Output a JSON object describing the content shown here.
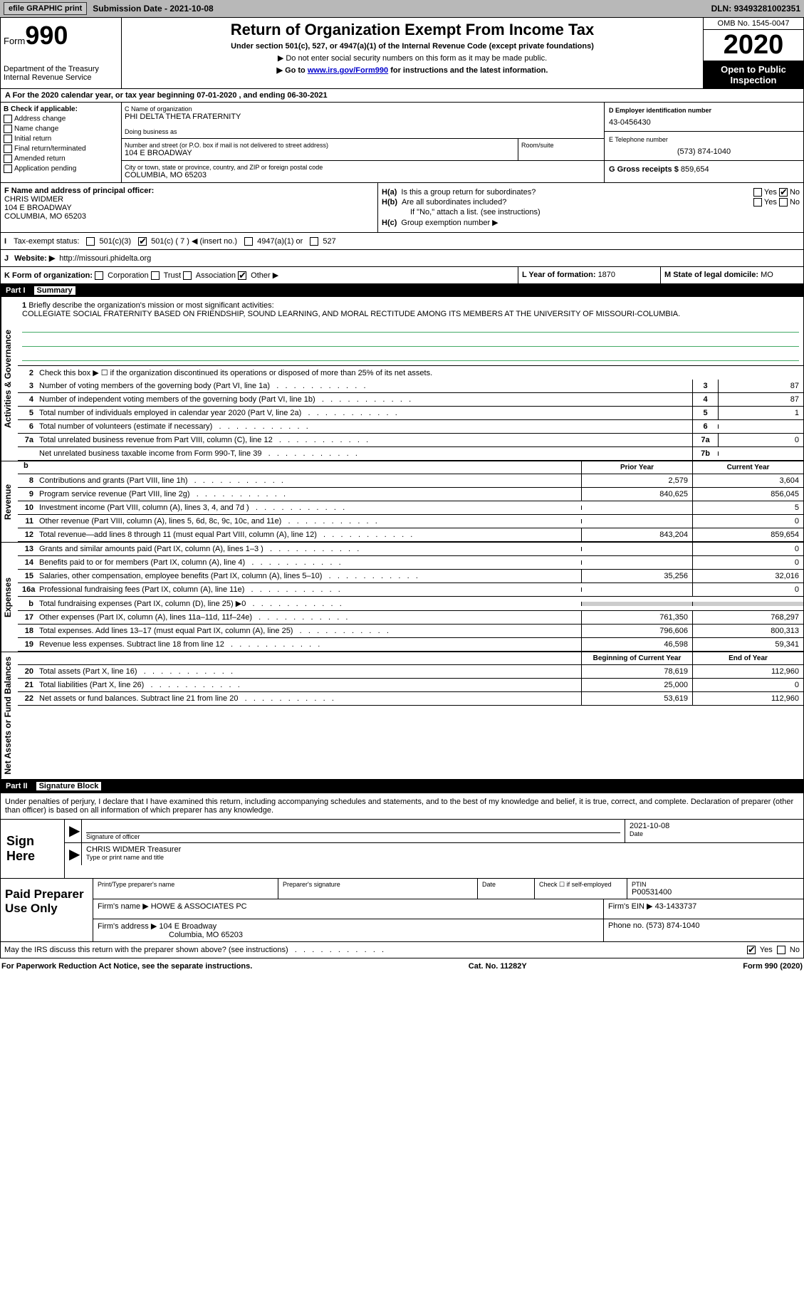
{
  "toolbar": {
    "efile_btn": "efile GRAPHIC print",
    "sub_date_label": "Submission Date - ",
    "sub_date": "2021-10-08",
    "dln_label": "DLN: ",
    "dln": "93493281002351"
  },
  "header": {
    "form_word": "Form",
    "form_num": "990",
    "dept": "Department of the Treasury\nInternal Revenue Service",
    "title": "Return of Organization Exempt From Income Tax",
    "subtitle": "Under section 501(c), 527, or 4947(a)(1) of the Internal Revenue Code (except private foundations)",
    "sub2": "▶ Do not enter social security numbers on this form as it may be made public.",
    "sub3_pre": "▶ Go to ",
    "sub3_link": "www.irs.gov/Form990",
    "sub3_post": " for instructions and the latest information.",
    "omb": "OMB No. 1545-0047",
    "year": "2020",
    "open": "Open to Public Inspection"
  },
  "line_a": "A For the 2020 calendar year, or tax year beginning 07-01-2020   , and ending 06-30-2021",
  "b": {
    "label": "B Check if applicable:",
    "items": [
      "Address change",
      "Name change",
      "Initial return",
      "Final return/terminated",
      "Amended return",
      "Application pending"
    ]
  },
  "c": {
    "name_label": "C Name of organization",
    "name": "PHI DELTA THETA FRATERNITY",
    "dba_label": "Doing business as",
    "street_label": "Number and street (or P.O. box if mail is not delivered to street address)",
    "street": "104 E BROADWAY",
    "room_label": "Room/suite",
    "city_label": "City or town, state or province, country, and ZIP or foreign postal code",
    "city": "COLUMBIA, MO  65203"
  },
  "d": {
    "label": "D Employer identification number",
    "value": "43-0456430"
  },
  "e": {
    "label": "E Telephone number",
    "value": "(573) 874-1040"
  },
  "g": {
    "label": "G Gross receipts $ ",
    "value": "859,654"
  },
  "f": {
    "label": "F Name and address of principal officer:",
    "name": "CHRIS WIDMER",
    "street": "104 E BROADWAY",
    "city": "COLUMBIA, MO  65203"
  },
  "h": {
    "a_label": "Is this a group return for subordinates?",
    "b_label": "Are all subordinates included?",
    "note": "If \"No,\" attach a list. (see instructions)",
    "c_label": "Group exemption number ▶"
  },
  "i": {
    "label": "Tax-exempt status:",
    "o1": "501(c)(3)",
    "o2": "501(c) ( 7 ) ◀ (insert no.)",
    "o3": "4947(a)(1) or",
    "o4": "527"
  },
  "j": {
    "label": "Website: ▶",
    "value": "http://missouri.phidelta.org"
  },
  "k": {
    "label": "K Form of organization:",
    "opts": [
      "Corporation",
      "Trust",
      "Association",
      "Other ▶"
    ]
  },
  "l": {
    "label": "L Year of formation: ",
    "value": "1870"
  },
  "m": {
    "label": "M State of legal domicile:",
    "value": "MO"
  },
  "part1": {
    "header": "Part I",
    "title": "Summary",
    "mission_label": "Briefly describe the organization's mission or most significant activities:",
    "mission": "COLLEGIATE SOCIAL FRATERNITY BASED ON FRIENDSHIP, SOUND LEARNING, AND MORAL RECTITUDE AMONG ITS MEMBERS AT THE UNIVERSITY OF MISSOURI-COLUMBIA.",
    "line2": "Check this box ▶ ☐  if the organization discontinued its operations or disposed of more than 25% of its net assets.",
    "vtabs": [
      "Activities & Governance",
      "Revenue",
      "Expenses",
      "Net Assets or Fund Balances"
    ],
    "rows_gov": [
      {
        "n": "3",
        "lbl": "Number of voting members of the governing body (Part VI, line 1a)",
        "box": "3",
        "val": "87"
      },
      {
        "n": "4",
        "lbl": "Number of independent voting members of the governing body (Part VI, line 1b)",
        "box": "4",
        "val": "87"
      },
      {
        "n": "5",
        "lbl": "Total number of individuals employed in calendar year 2020 (Part V, line 2a)",
        "box": "5",
        "val": "1"
      },
      {
        "n": "6",
        "lbl": "Total number of volunteers (estimate if necessary)",
        "box": "6",
        "val": ""
      },
      {
        "n": "7a",
        "lbl": "Total unrelated business revenue from Part VIII, column (C), line 12",
        "box": "7a",
        "val": "0"
      },
      {
        "n": "",
        "lbl": "Net unrelated business taxable income from Form 990-T, line 39",
        "box": "7b",
        "val": ""
      }
    ],
    "col_prior": "Prior Year",
    "col_current": "Current Year",
    "rows_rev": [
      {
        "n": "8",
        "lbl": "Contributions and grants (Part VIII, line 1h)",
        "p": "2,579",
        "c": "3,604"
      },
      {
        "n": "9",
        "lbl": "Program service revenue (Part VIII, line 2g)",
        "p": "840,625",
        "c": "856,045"
      },
      {
        "n": "10",
        "lbl": "Investment income (Part VIII, column (A), lines 3, 4, and 7d )",
        "p": "",
        "c": "5"
      },
      {
        "n": "11",
        "lbl": "Other revenue (Part VIII, column (A), lines 5, 6d, 8c, 9c, 10c, and 11e)",
        "p": "",
        "c": "0"
      },
      {
        "n": "12",
        "lbl": "Total revenue—add lines 8 through 11 (must equal Part VIII, column (A), line 12)",
        "p": "843,204",
        "c": "859,654"
      }
    ],
    "rows_exp": [
      {
        "n": "13",
        "lbl": "Grants and similar amounts paid (Part IX, column (A), lines 1–3 )",
        "p": "",
        "c": "0"
      },
      {
        "n": "14",
        "lbl": "Benefits paid to or for members (Part IX, column (A), line 4)",
        "p": "",
        "c": "0"
      },
      {
        "n": "15",
        "lbl": "Salaries, other compensation, employee benefits (Part IX, column (A), lines 5–10)",
        "p": "35,256",
        "c": "32,016"
      },
      {
        "n": "16a",
        "lbl": "Professional fundraising fees (Part IX, column (A), line 11e)",
        "p": "",
        "c": "0"
      },
      {
        "n": "b",
        "lbl": "Total fundraising expenses (Part IX, column (D), line 25) ▶0",
        "p": "SHADE",
        "c": "SHADE"
      },
      {
        "n": "17",
        "lbl": "Other expenses (Part IX, column (A), lines 11a–11d, 11f–24e)",
        "p": "761,350",
        "c": "768,297"
      },
      {
        "n": "18",
        "lbl": "Total expenses. Add lines 13–17 (must equal Part IX, column (A), line 25)",
        "p": "796,606",
        "c": "800,313"
      },
      {
        "n": "19",
        "lbl": "Revenue less expenses. Subtract line 18 from line 12",
        "p": "46,598",
        "c": "59,341"
      }
    ],
    "col_boy": "Beginning of Current Year",
    "col_eoy": "End of Year",
    "rows_net": [
      {
        "n": "20",
        "lbl": "Total assets (Part X, line 16)",
        "p": "78,619",
        "c": "112,960"
      },
      {
        "n": "21",
        "lbl": "Total liabilities (Part X, line 26)",
        "p": "25,000",
        "c": "0"
      },
      {
        "n": "22",
        "lbl": "Net assets or fund balances. Subtract line 21 from line 20",
        "p": "53,619",
        "c": "112,960"
      }
    ]
  },
  "part2": {
    "header": "Part II",
    "title": "Signature Block",
    "decl": "Under penalties of perjury, I declare that I have examined this return, including accompanying schedules and statements, and to the best of my knowledge and belief, it is true, correct, and complete. Declaration of preparer (other than officer) is based on all information of which preparer has any knowledge."
  },
  "sign": {
    "left": "Sign Here",
    "sig_label": "Signature of officer",
    "date_label": "Date",
    "date": "2021-10-08",
    "name": "CHRIS WIDMER Treasurer",
    "name_label": "Type or print name and title"
  },
  "paid": {
    "left": "Paid Preparer Use Only",
    "h1": "Print/Type preparer's name",
    "h2": "Preparer's signature",
    "h3": "Date",
    "h4": "Check ☐ if self-employed",
    "h5_label": "PTIN",
    "h5": "P00531400",
    "firm_label": "Firm's name    ▶ ",
    "firm": "HOWE & ASSOCIATES PC",
    "ein_label": "Firm's EIN ▶ ",
    "ein": "43-1433737",
    "addr_label": "Firm's address ▶ ",
    "addr1": "104 E Broadway",
    "addr2": "Columbia, MO  65203",
    "phone_label": "Phone no. ",
    "phone": "(573) 874-1040"
  },
  "irs_discuss": "May the IRS discuss this return with the preparer shown above? (see instructions)",
  "footer": {
    "l": "For Paperwork Reduction Act Notice, see the separate instructions.",
    "m": "Cat. No. 11282Y",
    "r": "Form 990 (2020)"
  }
}
